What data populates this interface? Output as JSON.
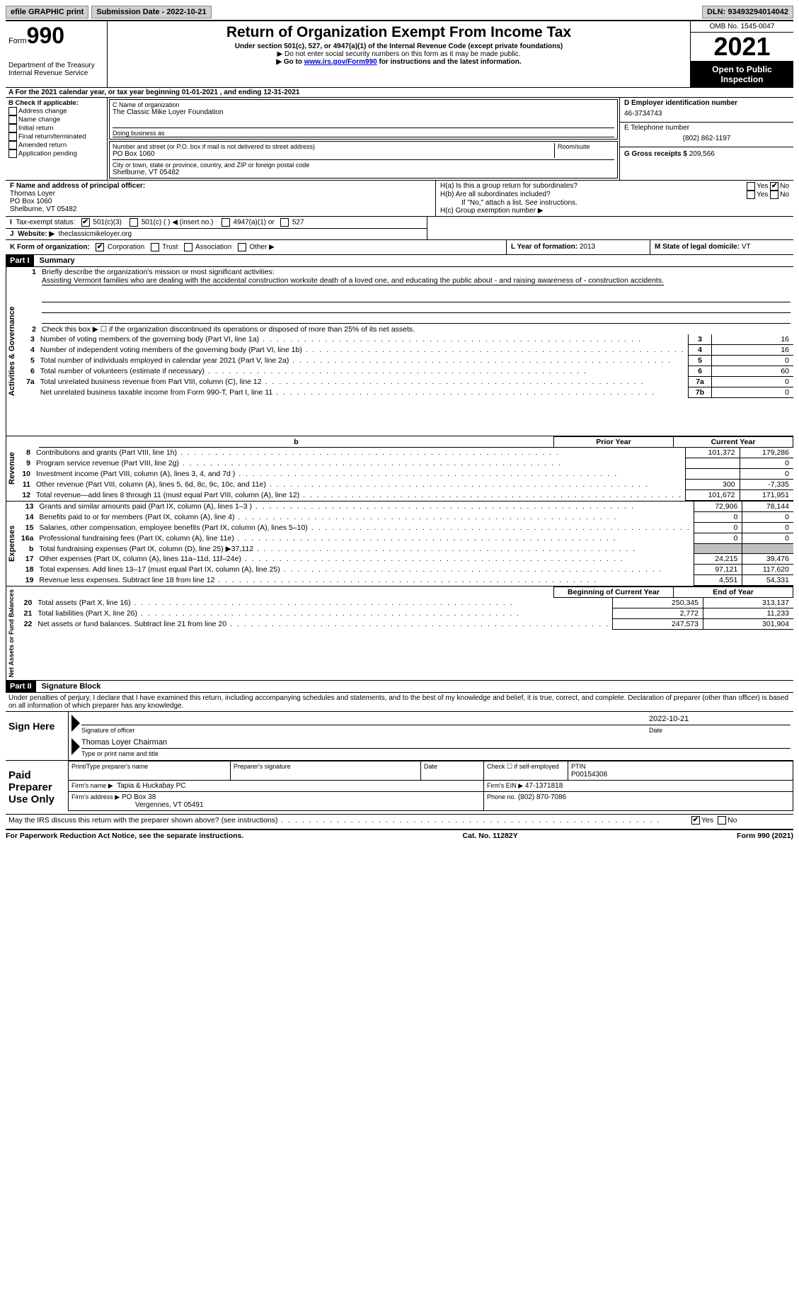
{
  "top": {
    "efile": "efile GRAPHIC print",
    "submission_label": "Submission Date - 2022-10-21",
    "dln_label": "DLN: 93493294014042"
  },
  "header": {
    "form_word": "Form",
    "form_num": "990",
    "dept": "Department of the Treasury",
    "irs": "Internal Revenue Service",
    "title": "Return of Organization Exempt From Income Tax",
    "sub": "Under section 501(c), 527, or 4947(a)(1) of the Internal Revenue Code (except private foundations)",
    "note1": "▶ Do not enter social security numbers on this form as it may be made public.",
    "note2_pre": "▶ Go to ",
    "note2_link": "www.irs.gov/Form990",
    "note2_post": " for instructions and the latest information.",
    "omb": "OMB No. 1545-0047",
    "year": "2021",
    "open": "Open to Public Inspection"
  },
  "a": {
    "text": "A For the 2021 calendar year, or tax year beginning 01-01-2021    , and ending 12-31-2021"
  },
  "b": {
    "label": "B Check if applicable:",
    "opts": [
      "Address change",
      "Name change",
      "Initial return",
      "Final return/terminated",
      "Amended return",
      "Application pending"
    ]
  },
  "c": {
    "name_label": "C Name of organization",
    "name": "The Classic Mike Loyer Foundation",
    "dba_label": "Doing business as",
    "street_label": "Number and street (or P.O. box if mail is not delivered to street address)",
    "room_label": "Room/suite",
    "street": "PO Box 1060",
    "city_label": "City or town, state or province, country, and ZIP or foreign postal code",
    "city": "Shelburne, VT  05482"
  },
  "d": {
    "label": "D Employer identification number",
    "val": "46-3734743"
  },
  "e": {
    "label": "E Telephone number",
    "val": "(802) 862-1197"
  },
  "g": {
    "label": "G Gross receipts $",
    "val": "209,566"
  },
  "f": {
    "label": "F Name and address of principal officer:",
    "name": "Thomas Loyer",
    "street": "PO Box 1060",
    "city": "Shelburne, VT  05482"
  },
  "h": {
    "a": "H(a)  Is this a group return for subordinates?",
    "b": "H(b)  Are all subordinates included?",
    "b_note": "If \"No,\" attach a list. See instructions.",
    "c": "H(c)  Group exemption number ▶",
    "yes": "Yes",
    "no": "No"
  },
  "i": {
    "label": "Tax-exempt status:",
    "o1": "501(c)(3)",
    "o2": "501(c) (  ) ◀ (insert no.)",
    "o3": "4947(a)(1) or",
    "o4": "527"
  },
  "j": {
    "label": "Website: ▶",
    "val": "theclassicmikeloyer.org"
  },
  "k": {
    "label": "K Form of organization:",
    "o1": "Corporation",
    "o2": "Trust",
    "o3": "Association",
    "o4": "Other ▶"
  },
  "l": {
    "label": "L Year of formation: ",
    "val": "2013"
  },
  "m": {
    "label": "M State of legal domicile: ",
    "val": "VT"
  },
  "part1": {
    "header": "Part I",
    "title": "Summary",
    "line1_label": "Briefly describe the organization's mission or most significant activities:",
    "line1_text": "Assisting Vermont families who are dealing with the accidental construction worksite death of a loved one, and educating the public about - and raising awareness of - construction accidents.",
    "line2": "Check this box ▶ ☐ if the organization discontinued its operations or disposed of more than 25% of its net assets.",
    "lines_top": [
      {
        "n": "3",
        "t": "Number of voting members of the governing body (Part VI, line 1a)",
        "box": "3",
        "v": "16"
      },
      {
        "n": "4",
        "t": "Number of independent voting members of the governing body (Part VI, line 1b)",
        "box": "4",
        "v": "16"
      },
      {
        "n": "5",
        "t": "Total number of individuals employed in calendar year 2021 (Part V, line 2a)",
        "box": "5",
        "v": "0"
      },
      {
        "n": "6",
        "t": "Total number of volunteers (estimate if necessary)",
        "box": "6",
        "v": "60"
      },
      {
        "n": "7a",
        "t": "Total unrelated business revenue from Part VIII, column (C), line 12",
        "box": "7a",
        "v": "0"
      },
      {
        "n": "",
        "t": "Net unrelated business taxable income from Form 990-T, Part I, line 11",
        "box": "7b",
        "v": "0"
      }
    ],
    "col_head_prior": "Prior Year",
    "col_head_current": "Current Year",
    "revenue": [
      {
        "n": "8",
        "t": "Contributions and grants (Part VIII, line 1h)",
        "p": "101,372",
        "c": "179,286"
      },
      {
        "n": "9",
        "t": "Program service revenue (Part VIII, line 2g)",
        "p": "",
        "c": "0"
      },
      {
        "n": "10",
        "t": "Investment income (Part VIII, column (A), lines 3, 4, and 7d )",
        "p": "",
        "c": "0"
      },
      {
        "n": "11",
        "t": "Other revenue (Part VIII, column (A), lines 5, 6d, 8c, 9c, 10c, and 11e)",
        "p": "300",
        "c": "-7,335"
      },
      {
        "n": "12",
        "t": "Total revenue—add lines 8 through 11 (must equal Part VIII, column (A), line 12)",
        "p": "101,672",
        "c": "171,951"
      }
    ],
    "expenses": [
      {
        "n": "13",
        "t": "Grants and similar amounts paid (Part IX, column (A), lines 1–3 )",
        "p": "72,906",
        "c": "78,144"
      },
      {
        "n": "14",
        "t": "Benefits paid to or for members (Part IX, column (A), line 4)",
        "p": "0",
        "c": "0"
      },
      {
        "n": "15",
        "t": "Salaries, other compensation, employee benefits (Part IX, column (A), lines 5–10)",
        "p": "0",
        "c": "0"
      },
      {
        "n": "16a",
        "t": "Professional fundraising fees (Part IX, column (A), line 11e)",
        "p": "0",
        "c": "0"
      },
      {
        "n": "b",
        "t": "Total fundraising expenses (Part IX, column (D), line 25) ▶37,112",
        "p": "SHADE",
        "c": "SHADE"
      },
      {
        "n": "17",
        "t": "Other expenses (Part IX, column (A), lines 11a–11d, 11f–24e)",
        "p": "24,215",
        "c": "39,476"
      },
      {
        "n": "18",
        "t": "Total expenses. Add lines 13–17 (must equal Part IX, column (A), line 25)",
        "p": "97,121",
        "c": "117,620"
      },
      {
        "n": "19",
        "t": "Revenue less expenses. Subtract line 18 from line 12",
        "p": "4,551",
        "c": "54,331"
      }
    ],
    "col_head_begin": "Beginning of Current Year",
    "col_head_end": "End of Year",
    "net": [
      {
        "n": "20",
        "t": "Total assets (Part X, line 16)",
        "p": "250,345",
        "c": "313,137"
      },
      {
        "n": "21",
        "t": "Total liabilities (Part X, line 26)",
        "p": "2,772",
        "c": "11,233"
      },
      {
        "n": "22",
        "t": "Net assets or fund balances. Subtract line 21 from line 20",
        "p": "247,573",
        "c": "301,904"
      }
    ],
    "vert_ag": "Activities & Governance",
    "vert_rev": "Revenue",
    "vert_exp": "Expenses",
    "vert_net": "Net Assets or Fund Balances"
  },
  "part2": {
    "header": "Part II",
    "title": "Signature Block",
    "decl": "Under penalties of perjury, I declare that I have examined this return, including accompanying schedules and statements, and to the best of my knowledge and belief, it is true, correct, and complete. Declaration of preparer (other than officer) is based on all information of which preparer has any knowledge.",
    "sign_here": "Sign Here",
    "sig_officer": "Signature of officer",
    "sig_date_val": "2022-10-21",
    "sig_date": "Date",
    "sig_name_val": "Thomas Loyer  Chairman",
    "sig_name": "Type or print name and title",
    "paid_prep": "Paid Preparer Use Only",
    "pt_name": "Print/Type preparer's name",
    "pt_sig": "Preparer's signature",
    "pt_date": "Date",
    "pt_check": "Check ☐ if self-employed",
    "ptin_label": "PTIN",
    "ptin": "P00154308",
    "firm_name_label": "Firm's name    ▶",
    "firm_name": "Tapia & Huckabay PC",
    "firm_ein_label": "Firm's EIN ▶",
    "firm_ein": "47-1371818",
    "firm_addr_label": "Firm's address ▶",
    "firm_addr1": "PO Box 38",
    "firm_addr2": "Vergennes, VT  05491",
    "phone_label": "Phone no.",
    "phone": "(802) 870-7086",
    "discuss": "May the IRS discuss this return with the preparer shown above? (see instructions)",
    "yes": "Yes",
    "no": "No"
  },
  "footer": {
    "left": "For Paperwork Reduction Act Notice, see the separate instructions.",
    "mid": "Cat. No. 11282Y",
    "right": "Form 990 (2021)"
  }
}
